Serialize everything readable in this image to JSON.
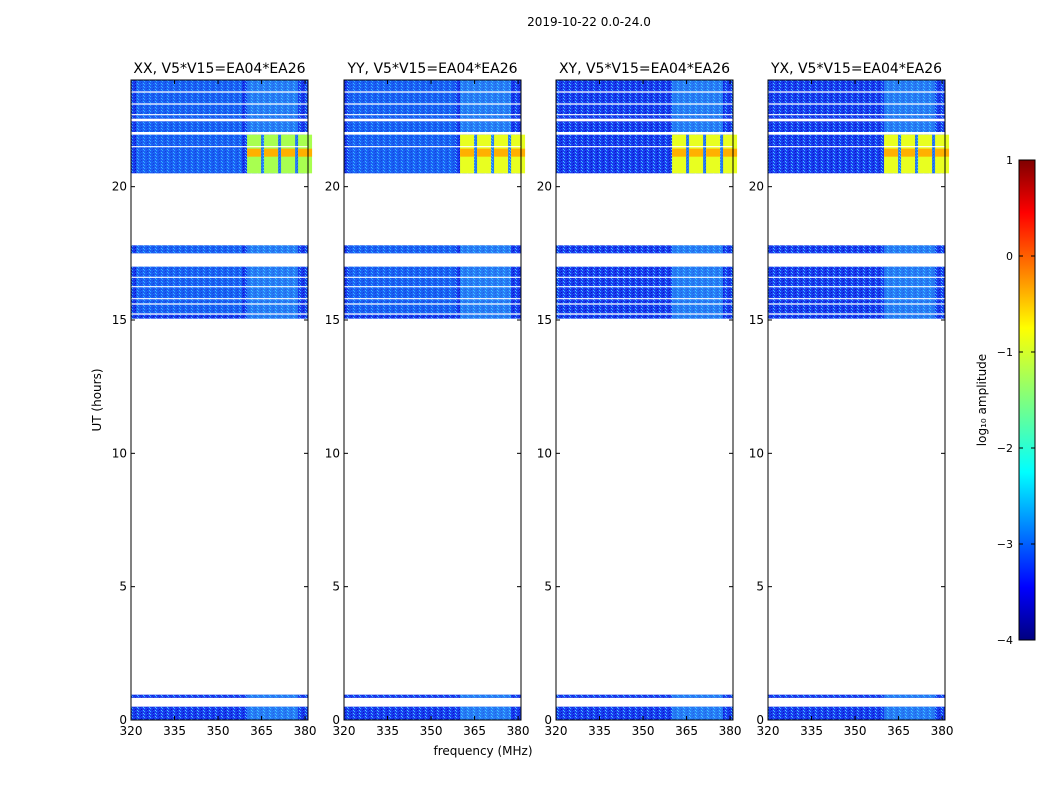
{
  "chart_data": {
    "type": "heatmap",
    "suptitle": "2019-10-22 0.0-24.0",
    "xlabel": "frequency (MHz)",
    "ylabel": "UT (hours)",
    "xlim": [
      320,
      381
    ],
    "ylim": [
      0,
      24
    ],
    "xticks": [
      320,
      335,
      350,
      365,
      380
    ],
    "yticks": [
      0,
      5,
      10,
      15,
      20
    ],
    "panels": [
      {
        "title": "XX, V5*V15=EA04*EA26",
        "pol": "XX"
      },
      {
        "title": "YY, V5*V15=EA04*EA26",
        "pol": "YY"
      },
      {
        "title": "XY, V5*V15=EA04*EA26",
        "pol": "XY"
      },
      {
        "title": "YX, V5*V15=EA04*EA26",
        "pol": "YX"
      }
    ],
    "data_blocks_ut_hours": [
      [
        0.0,
        0.5
      ],
      [
        0.83,
        0.95
      ],
      [
        15.05,
        15.2
      ],
      [
        15.25,
        17.0
      ],
      [
        17.5,
        17.8
      ],
      [
        20.5,
        21.95
      ],
      [
        22.05,
        22.45
      ],
      [
        22.55,
        24.0
      ]
    ],
    "bright_band_mhz": [
      360,
      381
    ],
    "bright_band_peak_ut": [
      20.5,
      21.95
    ],
    "colorbar": {
      "label": "log₁₀ amplitude",
      "min": -4,
      "max": 1,
      "ticks": [
        1,
        0,
        -1,
        -2,
        -3,
        -4
      ],
      "tick_labels": [
        "1",
        "0",
        "−1",
        "−2",
        "−3",
        "−4"
      ],
      "colormap": "jet"
    }
  }
}
